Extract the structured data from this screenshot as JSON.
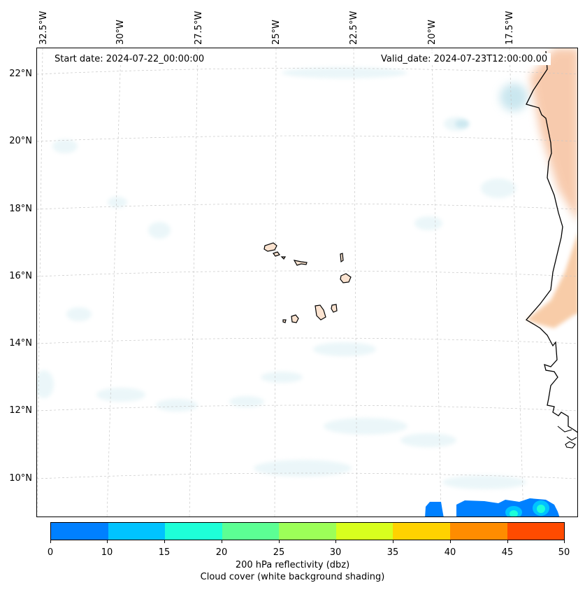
{
  "start_date_text": "Start date: 2024-07-22_00:00:00",
  "valid_date_text": "Valid_date: 2024-07-23T12:00:00.00",
  "longitude_labels": [
    "32.5°W",
    "30°W",
    "27.5°W",
    "25°W",
    "22.5°W",
    "20°W",
    "17.5°W"
  ],
  "latitude_labels": [
    "22°N",
    "20°N",
    "18°N",
    "16°N",
    "14°N",
    "12°N",
    "10°N"
  ],
  "colorbar": {
    "ticks": [
      "0",
      "10",
      "15",
      "20",
      "25",
      "30",
      "35",
      "40",
      "45",
      "50"
    ],
    "colors": [
      "#0080ff",
      "#00c3ff",
      "#1effd8",
      "#5cff94",
      "#9cff58",
      "#d8ff1e",
      "#ffd200",
      "#ff8c00",
      "#ff4b00"
    ],
    "label_line1": "200 hPa reflectivity (dbz)",
    "label_line2": "Cloud cover (white background shading)"
  }
}
